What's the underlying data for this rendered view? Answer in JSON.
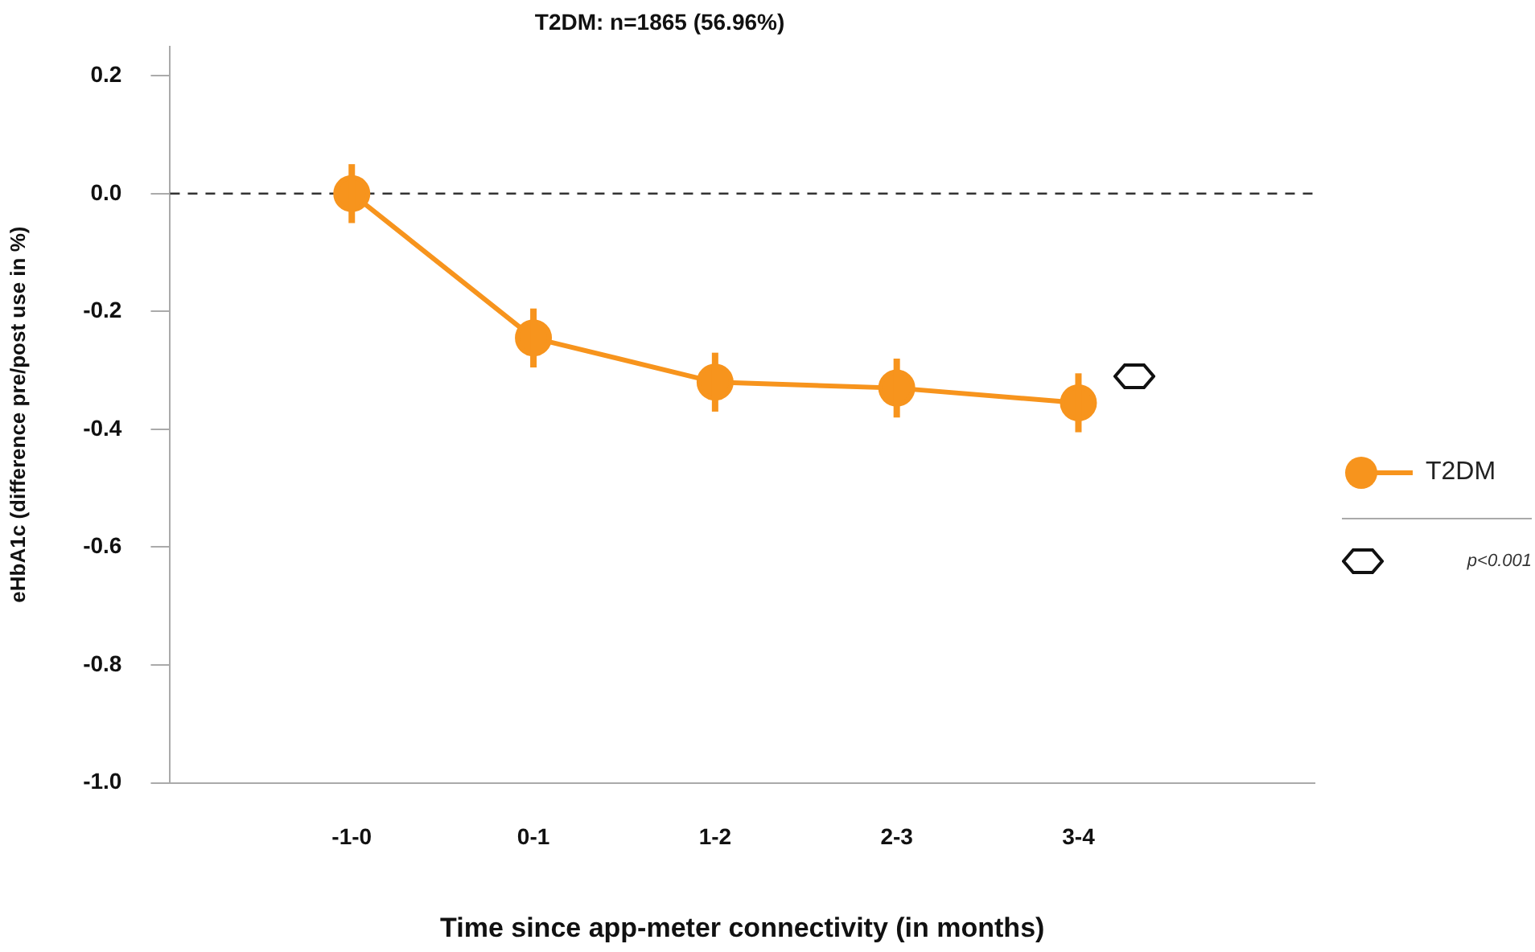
{
  "chart_data": {
    "type": "line",
    "title": "T2DM: n=1865 (56.96%)",
    "xlabel": "Time since app-meter connectivity (in months)",
    "ylabel": "eHbA1c (difference pre/post use in %)",
    "categories": [
      "-1-0",
      "0-1",
      "1-2",
      "2-3",
      "3-4"
    ],
    "series": [
      {
        "name": "T2DM",
        "color": "#f7941d",
        "values": [
          0,
          -0.245,
          -0.32,
          -0.33,
          -0.355
        ],
        "errors": [
          0.05,
          0.05,
          0.05,
          0.05,
          0.05
        ]
      }
    ],
    "ylim": [
      -1,
      0.25
    ],
    "yticks": [
      {
        "value": -1,
        "label": "-1.0"
      },
      -0.8,
      -0.6,
      -0.4,
      -0.2,
      {
        "value": 0,
        "label": "0.0"
      },
      0.2
    ],
    "ref_lines": [
      {
        "axis": "y",
        "value": 0,
        "line_style": "dashed",
        "color": "#333333"
      }
    ],
    "annotations": [
      "p<0.001"
    ],
    "legend": "right",
    "marker": "circle",
    "grid": false,
    "line_style": "solid"
  }
}
